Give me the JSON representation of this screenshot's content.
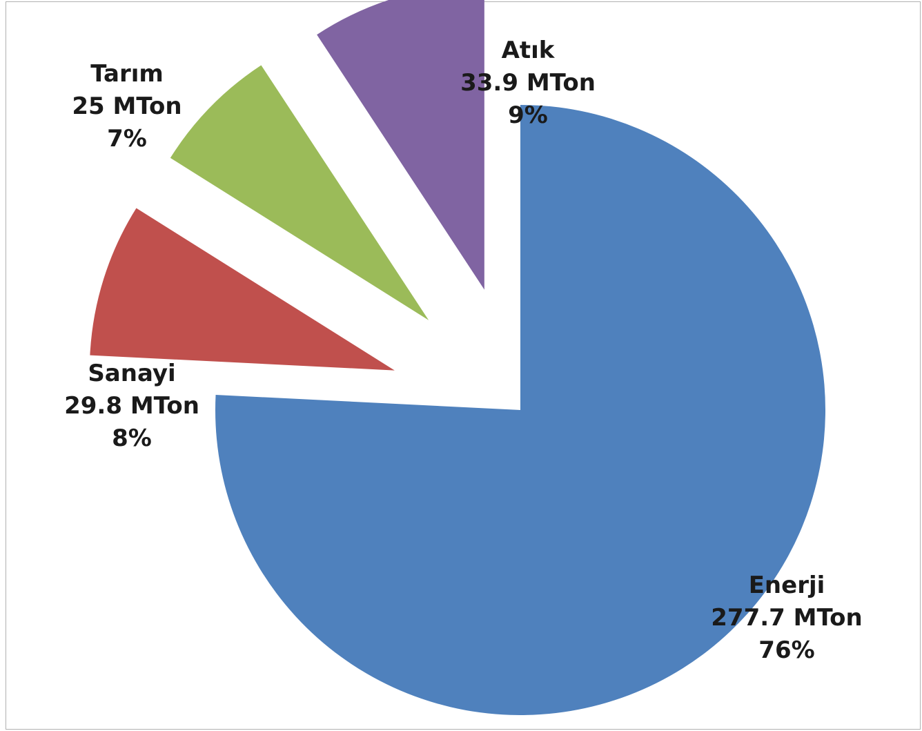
{
  "chart_data": {
    "type": "pie",
    "title": "",
    "exploded": true,
    "slices": [
      {
        "name": "Enerji",
        "value_text": "277.7 MTon",
        "percent_text": "76%",
        "value": 277.7,
        "percent": 76,
        "color": "#4f81bd"
      },
      {
        "name": "Sanayi",
        "value_text": "29.8 MTon",
        "percent_text": "8%",
        "value": 29.8,
        "percent": 8,
        "color": "#c0504d"
      },
      {
        "name": "Tarım",
        "value_text": "25 MTon",
        "percent_text": "7%",
        "value": 25,
        "percent": 7,
        "color": "#9bbb59"
      },
      {
        "name": "Atık",
        "value_text": "33.9 MTon",
        "percent_text": "9%",
        "value": 33.9,
        "percent": 9,
        "color": "#8064a2"
      }
    ]
  }
}
